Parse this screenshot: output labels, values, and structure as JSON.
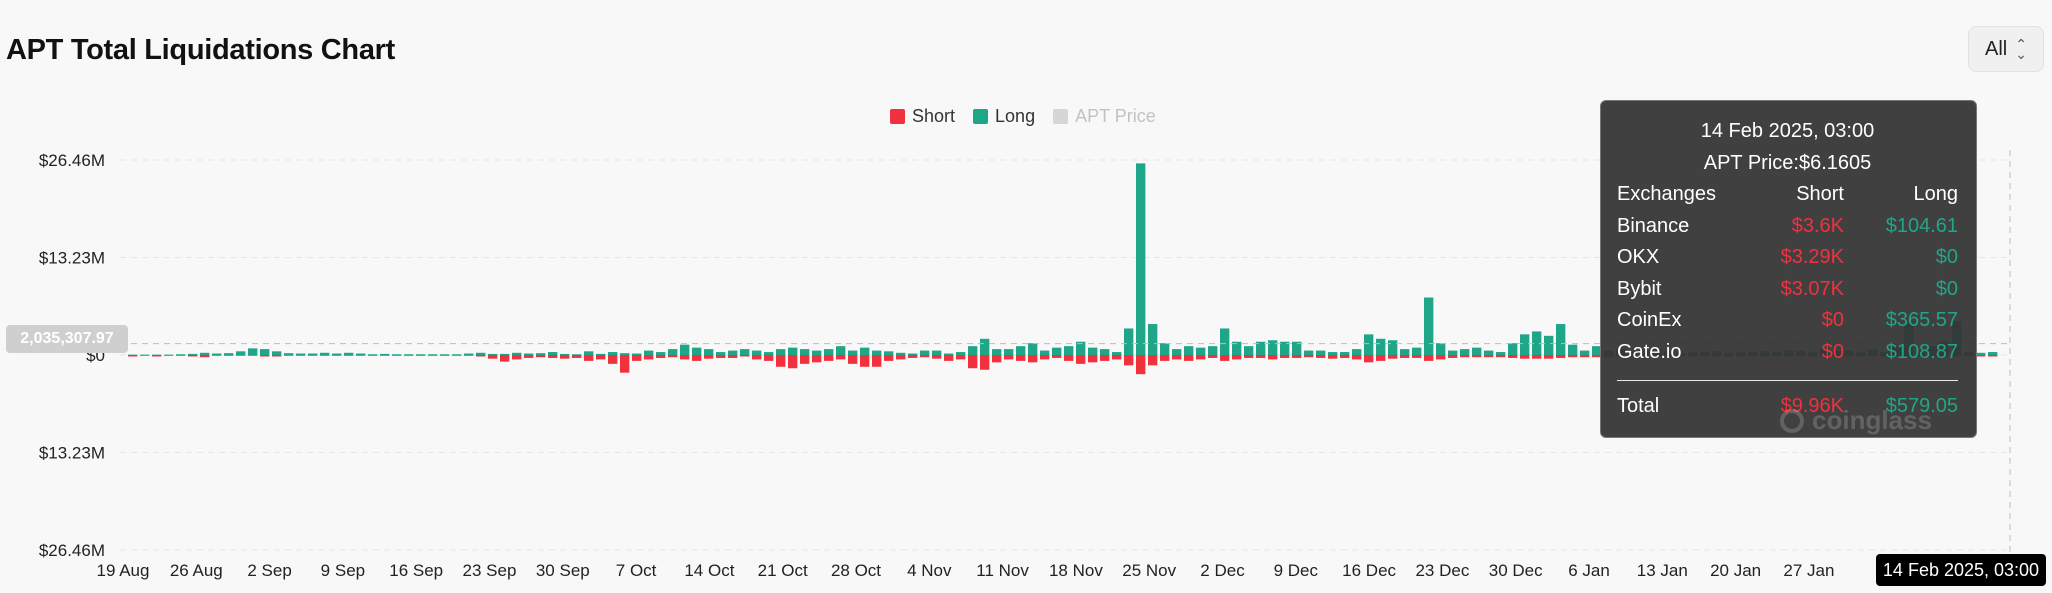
{
  "header": {
    "title": "APT Total Liquidations Chart",
    "range_select": {
      "value": "All"
    }
  },
  "legend": [
    {
      "label": "Short",
      "color": "#f0313e",
      "active": true
    },
    {
      "label": "Long",
      "color": "#1fa688",
      "active": true
    },
    {
      "label": "APT Price",
      "color": "#cfcfcf",
      "active": false
    }
  ],
  "crosshair": {
    "y_value_label": "2,035,307.97",
    "x_value_label": "14 Feb 2025, 03:00"
  },
  "tooltip": {
    "datetime": "14 Feb 2025, 03:00",
    "price_label": "APT Price:",
    "price_value": "$6.1605",
    "columns": [
      "Exchanges",
      "Short",
      "Long"
    ],
    "rows": [
      {
        "exchange": "Binance",
        "short": "$3.6K",
        "long": "$104.61"
      },
      {
        "exchange": "OKX",
        "short": "$3.29K",
        "long": "$0"
      },
      {
        "exchange": "Bybit",
        "short": "$3.07K",
        "long": "$0"
      },
      {
        "exchange": "CoinEx",
        "short": "$0",
        "long": "$365.57"
      },
      {
        "exchange": "Gate.io",
        "short": "$0",
        "long": "$108.87"
      }
    ],
    "total": {
      "label": "Total",
      "short": "$9.96K",
      "long": "$579.05"
    }
  },
  "watermark": "coinglass",
  "chart_data": {
    "type": "bar",
    "title": "APT Total Liquidations Chart",
    "x_labels": [
      "19 Aug",
      "26 Aug",
      "2 Sep",
      "9 Sep",
      "16 Sep",
      "23 Sep",
      "30 Sep",
      "7 Oct",
      "14 Oct",
      "21 Oct",
      "28 Oct",
      "4 Nov",
      "11 Nov",
      "18 Nov",
      "25 Nov",
      "2 Dec",
      "9 Dec",
      "16 Dec",
      "23 Dec",
      "30 Dec",
      "6 Jan",
      "13 Jan",
      "20 Jan",
      "27 Jan"
    ],
    "y_ticks": [
      {
        "value": 26.46,
        "label": "$26.46M"
      },
      {
        "value": 13.23,
        "label": "$13.23M"
      },
      {
        "value": 0,
        "label": "$0"
      },
      {
        "value": -13.23,
        "label": "$13.23M"
      },
      {
        "value": -26.46,
        "label": "$26.46M"
      }
    ],
    "unit": "USD millions",
    "ylim": [
      -26.46,
      26.46
    ],
    "grid": true,
    "legend_position": "top-center",
    "series": [
      {
        "name": "Long",
        "color": "#1fa688",
        "values": [
          0.05,
          0.05,
          0.05,
          0.05,
          0.1,
          0.15,
          0.3,
          0.2,
          0.25,
          0.5,
          0.9,
          0.8,
          0.5,
          0.25,
          0.2,
          0.2,
          0.3,
          0.2,
          0.3,
          0.2,
          0.1,
          0.15,
          0.1,
          0.1,
          0.1,
          0.1,
          0.1,
          0.1,
          0.2,
          0.3,
          0.15,
          0.15,
          0.3,
          0.2,
          0.25,
          0.4,
          0.15,
          0.1,
          0.5,
          0.15,
          0.4,
          0.25,
          0.2,
          0.6,
          0.4,
          0.8,
          1.4,
          1.0,
          0.8,
          0.4,
          0.6,
          0.8,
          0.6,
          0.4,
          0.8,
          1.0,
          0.8,
          0.6,
          0.8,
          1.2,
          0.6,
          1.0,
          0.6,
          0.5,
          0.3,
          0.2,
          0.6,
          0.6,
          0.2,
          0.4,
          1.2,
          2.2,
          0.8,
          0.8,
          1.2,
          1.6,
          0.6,
          1.0,
          1.2,
          1.8,
          1.0,
          0.8,
          0.4,
          3.6,
          26.0,
          4.2,
          1.6,
          0.8,
          1.2,
          1.0,
          1.2,
          3.6,
          1.8,
          1.2,
          1.8,
          2.0,
          1.8,
          1.8,
          0.6,
          0.6,
          0.4,
          0.4,
          0.8,
          2.8,
          2.2,
          2.0,
          0.8,
          1.0,
          7.8,
          1.6,
          0.6,
          0.8,
          1.0,
          0.6,
          0.4,
          1.6,
          2.8,
          3.2,
          2.6,
          4.2,
          1.4,
          0.6,
          1.2,
          0.6,
          0.8,
          0.4,
          0.6,
          0.8,
          0.5,
          0.3,
          0.4,
          0.4,
          0.5,
          0.3,
          0.4,
          0.4,
          0.5,
          0.4,
          0.6,
          0.6,
          0.4,
          0.8,
          0.5,
          0.6,
          0.4,
          0.8,
          0.4,
          1.2,
          4.2,
          0.6,
          1.2,
          1.8,
          4.6,
          0.4,
          0.3,
          0.4
        ]
      },
      {
        "name": "Short",
        "color": "#f0313e",
        "values": [
          -0.2,
          -0.1,
          -0.2,
          -0.1,
          -0.1,
          -0.2,
          -0.3,
          -0.1,
          -0.1,
          -0.1,
          -0.1,
          -0.2,
          -0.2,
          -0.1,
          -0.1,
          -0.1,
          -0.1,
          -0.1,
          -0.1,
          -0.1,
          -0.1,
          -0.1,
          -0.1,
          -0.1,
          -0.1,
          -0.1,
          -0.1,
          -0.1,
          -0.1,
          -0.2,
          -0.5,
          -0.9,
          -0.6,
          -0.4,
          -0.3,
          -0.4,
          -0.5,
          -0.4,
          -0.8,
          -0.6,
          -1.2,
          -2.4,
          -0.8,
          -0.6,
          -0.4,
          -0.3,
          -0.6,
          -0.8,
          -0.5,
          -0.4,
          -0.4,
          -0.2,
          -0.6,
          -0.8,
          -1.6,
          -1.8,
          -1.2,
          -1.0,
          -0.8,
          -0.6,
          -1.2,
          -1.6,
          -1.6,
          -0.8,
          -0.6,
          -0.4,
          -0.3,
          -0.5,
          -0.8,
          -0.6,
          -1.8,
          -2.0,
          -1.0,
          -0.6,
          -0.8,
          -1.0,
          -0.6,
          -0.4,
          -0.8,
          -1.2,
          -1.0,
          -0.8,
          -0.6,
          -1.4,
          -2.6,
          -1.4,
          -0.8,
          -0.6,
          -0.8,
          -0.6,
          -0.4,
          -0.8,
          -0.6,
          -0.4,
          -0.4,
          -0.6,
          -0.4,
          -0.4,
          -0.3,
          -0.4,
          -0.5,
          -0.4,
          -0.6,
          -1.0,
          -0.8,
          -0.5,
          -0.4,
          -0.4,
          -0.8,
          -0.6,
          -0.4,
          -0.3,
          -0.3,
          -0.3,
          -0.3,
          -0.4,
          -0.5,
          -0.5,
          -0.5,
          -0.4,
          -0.3,
          -0.3,
          -0.3,
          -0.3,
          -0.3,
          -0.3,
          -0.2,
          -0.2,
          -0.2,
          -0.2,
          -0.2,
          -0.2,
          -0.2,
          -0.2,
          -0.2,
          -0.2,
          -0.2,
          -0.2,
          -0.2,
          -0.2,
          -0.2,
          -0.2,
          -0.2,
          -0.2,
          -0.2,
          -0.2,
          -0.2,
          -0.2,
          -0.2,
          -0.2,
          -0.2,
          -0.2,
          -0.2,
          -0.2,
          -0.2,
          -0.2
        ]
      }
    ]
  }
}
